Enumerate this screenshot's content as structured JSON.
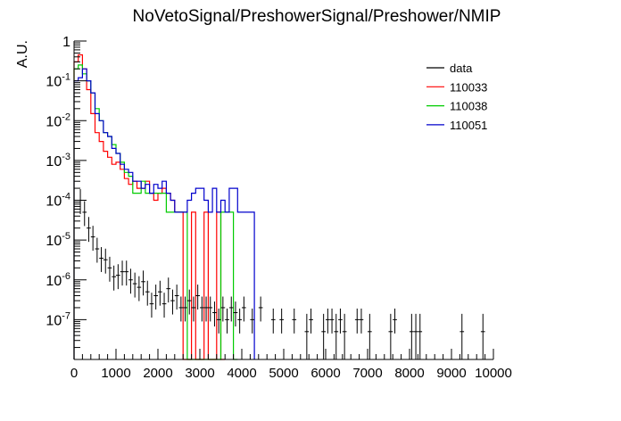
{
  "chart_data": {
    "type": "histogram",
    "title": "NoVetoSignal/PreshowerSignal/Preshower/NMIP",
    "xlabel": "",
    "ylabel": "A.U.",
    "xlim": [
      0,
      10000
    ],
    "ylim": [
      1e-08,
      1
    ],
    "yscale": "log",
    "grid": false,
    "legend_placement": "top-right",
    "x_ticks": [
      0,
      1000,
      2000,
      3000,
      4000,
      5000,
      6000,
      7000,
      8000,
      9000,
      10000
    ],
    "x_tick_labels": [
      "0",
      "1000",
      "2000",
      "3000",
      "4000",
      "5000",
      "6000",
      "7000",
      "8000",
      "9000",
      "10000"
    ],
    "y_ticks": [
      1e-07,
      1e-06,
      1e-05,
      0.0001,
      0.001,
      0.01,
      0.1,
      1
    ],
    "y_tick_labels": [
      {
        "base": "10",
        "exp": "-7"
      },
      {
        "base": "10",
        "exp": "-6"
      },
      {
        "base": "10",
        "exp": "-5"
      },
      {
        "base": "10",
        "exp": "-4"
      },
      {
        "base": "10",
        "exp": "-3"
      },
      {
        "base": "10",
        "exp": "-2"
      },
      {
        "base": "10",
        "exp": "-1"
      },
      {
        "base": "1",
        "exp": ""
      }
    ],
    "bin_width": 100,
    "data_series": {
      "name": "data",
      "color": "#000000",
      "x": [
        150,
        250,
        350,
        450,
        550,
        650,
        750,
        850,
        950,
        1050,
        1150,
        1250,
        1350,
        1450,
        1550,
        1650,
        1750,
        1850,
        1950,
        2050,
        2150,
        2250,
        2350,
        2450,
        2550,
        2650,
        2750,
        2850,
        2950,
        3050,
        3150,
        3250,
        3350,
        3450,
        3550,
        3650,
        3750,
        3850,
        3950,
        4050,
        4250,
        4450,
        4750,
        4950,
        5250,
        5550,
        5650,
        5950,
        6050,
        6150,
        6250,
        6350,
        6450,
        6750,
        6850,
        7050,
        7550,
        7650,
        8050,
        8150,
        8250,
        9250,
        9750
      ],
      "y": [
        0.0001,
        5e-05,
        2e-05,
        1.2e-05,
        6e-06,
        3.5e-06,
        3.2e-06,
        2e-06,
        1.2e-06,
        1.3e-06,
        1.6e-06,
        1.6e-06,
        1e-06,
        8e-07,
        6.5e-07,
        9e-07,
        5e-07,
        2.5e-07,
        4e-07,
        5e-07,
        2.5e-07,
        6e-07,
        3e-07,
        4e-07,
        2e-07,
        2e-07,
        3e-07,
        2e-07,
        4e-07,
        2e-07,
        2e-07,
        2e-07,
        1.5e-07,
        1e-07,
        2e-07,
        1e-07,
        2e-07,
        1.5e-07,
        1e-07,
        2e-07,
        1e-07,
        2e-07,
        1e-07,
        1e-07,
        1e-07,
        5e-08,
        1e-07,
        5e-08,
        1e-07,
        1e-07,
        5e-08,
        1e-07,
        5e-08,
        1e-07,
        1e-07,
        5e-08,
        5e-08,
        1e-07,
        5e-08,
        5e-08,
        5e-08,
        5e-08,
        5e-08
      ]
    },
    "series": [
      {
        "name": "110033",
        "color": "#ff0000",
        "bin_edges": [
          0,
          100,
          200,
          300,
          400,
          500,
          600,
          700,
          800,
          900,
          1000,
          1100,
          1200,
          1300,
          1400,
          1500,
          1600,
          1700,
          1800,
          1900,
          2000,
          2100,
          2200,
          2300,
          2400,
          2500,
          2600,
          2700,
          2800,
          2900,
          3000,
          3100,
          3200,
          3300,
          3400,
          3500,
          3600
        ],
        "values": [
          0.3,
          0.45,
          0.2,
          0.06,
          0.015,
          0.005,
          0.003,
          0.0017,
          0.0012,
          0.0008,
          0.0009,
          0.0006,
          0.00035,
          0.00025,
          0.0003,
          0.0002,
          0.0002,
          0.0003,
          0.00015,
          0.0001,
          0.00015,
          0.0002,
          0.00015,
          0.0001,
          5e-05,
          5e-05,
          1e-08,
          1e-08,
          5e-05,
          1e-08,
          1e-08,
          5e-05,
          1e-08,
          1e-08,
          5e-05,
          1e-08
        ]
      },
      {
        "name": "110038",
        "color": "#00cc00",
        "bin_edges": [
          0,
          100,
          200,
          300,
          400,
          500,
          600,
          700,
          800,
          900,
          1000,
          1100,
          1200,
          1300,
          1400,
          1500,
          1600,
          1700,
          1800,
          1900,
          2000,
          2100,
          2200,
          2300,
          2400,
          2500,
          2600,
          2700,
          2800,
          2900,
          3000,
          3100,
          3200,
          3300,
          3400,
          3500,
          3600,
          3700,
          3800,
          3900
        ],
        "values": [
          0.2,
          0.25,
          0.15,
          0.1,
          0.05,
          0.02,
          0.01,
          0.005,
          0.004,
          0.0025,
          0.0015,
          0.0009,
          0.0005,
          0.0004,
          0.00015,
          0.00015,
          0.0003,
          0.00015,
          0.00015,
          0.00015,
          0.00015,
          0.00015,
          5e-05,
          5e-05,
          5e-05,
          5e-05,
          5e-05,
          1e-08,
          1e-08,
          1e-08,
          1e-08,
          1e-08,
          1e-08,
          1e-08,
          1e-08,
          5e-05,
          5e-05,
          5e-05,
          1e-08
        ]
      },
      {
        "name": "110051",
        "color": "#0000cc",
        "bin_edges": [
          0,
          100,
          200,
          300,
          400,
          500,
          600,
          700,
          800,
          900,
          1000,
          1100,
          1200,
          1300,
          1400,
          1500,
          1600,
          1700,
          1800,
          1900,
          2000,
          2100,
          2200,
          2300,
          2400,
          2500,
          2600,
          2700,
          2800,
          2900,
          3000,
          3100,
          3200,
          3300,
          3400,
          3500,
          3600,
          3700,
          3800,
          3900,
          4000,
          4100,
          4200,
          4300
        ],
        "values": [
          0.1,
          0.12,
          0.2,
          0.1,
          0.05,
          0.015,
          0.01,
          0.005,
          0.004,
          0.002,
          0.0015,
          0.0008,
          0.0006,
          0.0005,
          0.0003,
          0.0003,
          0.0002,
          0.00025,
          0.00015,
          0.00025,
          0.0002,
          0.0003,
          0.00015,
          0.0001,
          5e-05,
          5e-05,
          5e-05,
          0.0001,
          0.00015,
          0.0002,
          0.0002,
          0.0001,
          5e-05,
          0.0002,
          5e-05,
          0.0001,
          5e-05,
          0.0002,
          0.0002,
          5e-05,
          5e-05,
          5e-05,
          5e-05
        ]
      }
    ]
  }
}
